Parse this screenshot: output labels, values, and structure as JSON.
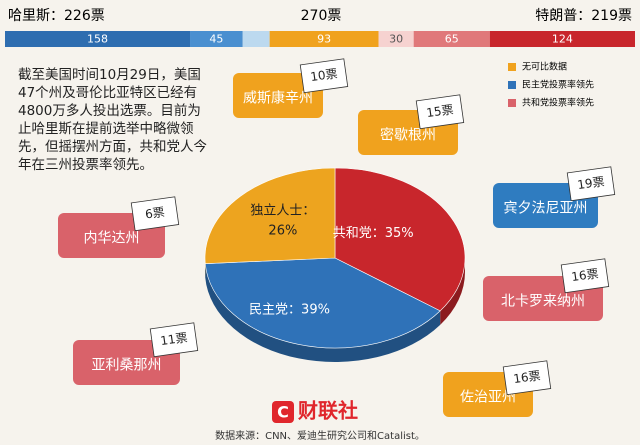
{
  "chart_data": [
    {
      "type": "stacked-bar",
      "left_label": "哈里斯：226票",
      "center_label": "270票",
      "right_label": "特朗普：219票",
      "values": [
        158,
        45,
        23,
        93,
        30,
        65,
        124
      ],
      "value_labels": [
        "158",
        "45",
        null,
        "93",
        "30",
        "65",
        "124"
      ],
      "colors": [
        "#2e6db0",
        "#4a8fd0",
        "#bcd9ef",
        "#f0a21e",
        "#f6d2d0",
        "#e0787a",
        "#c8262c"
      ],
      "xlim": [
        0,
        538
      ]
    },
    {
      "type": "pie",
      "categories": [
        "共和党：",
        "民主党：",
        "独立人士："
      ],
      "values": [
        35,
        39,
        26
      ],
      "value_labels": [
        "35%",
        "39%",
        "26%"
      ],
      "colors": [
        "#c8262c",
        "#2f72b8",
        "#eda41f"
      ]
    }
  ],
  "intro": "截至美国时间10月29日，美国47个州及哥伦比亚特区已经有4800万多人投出选票。目前为止哈里斯在提前选举中略微领先，但摇摆州方面，共和党人今年在三州投票率领先。",
  "legend": [
    "无可比数据",
    "民主党投票率领先",
    "共和党投票率领先"
  ],
  "states": [
    {
      "name": "威斯康辛州",
      "votes": "10票"
    },
    {
      "name": "密歇根州",
      "votes": "15票"
    },
    {
      "name": "宾夕法尼亚州",
      "votes": "19票"
    },
    {
      "name": "北卡罗来纳州",
      "votes": "16票"
    },
    {
      "name": "佐治亚州",
      "votes": "16票"
    },
    {
      "name": "内华达州",
      "votes": "6票"
    },
    {
      "name": "亚利桑那州",
      "votes": "11票"
    }
  ],
  "logo": "财联社",
  "source": "数据来源：CNN、爱迪生研究公司和Catalist。"
}
